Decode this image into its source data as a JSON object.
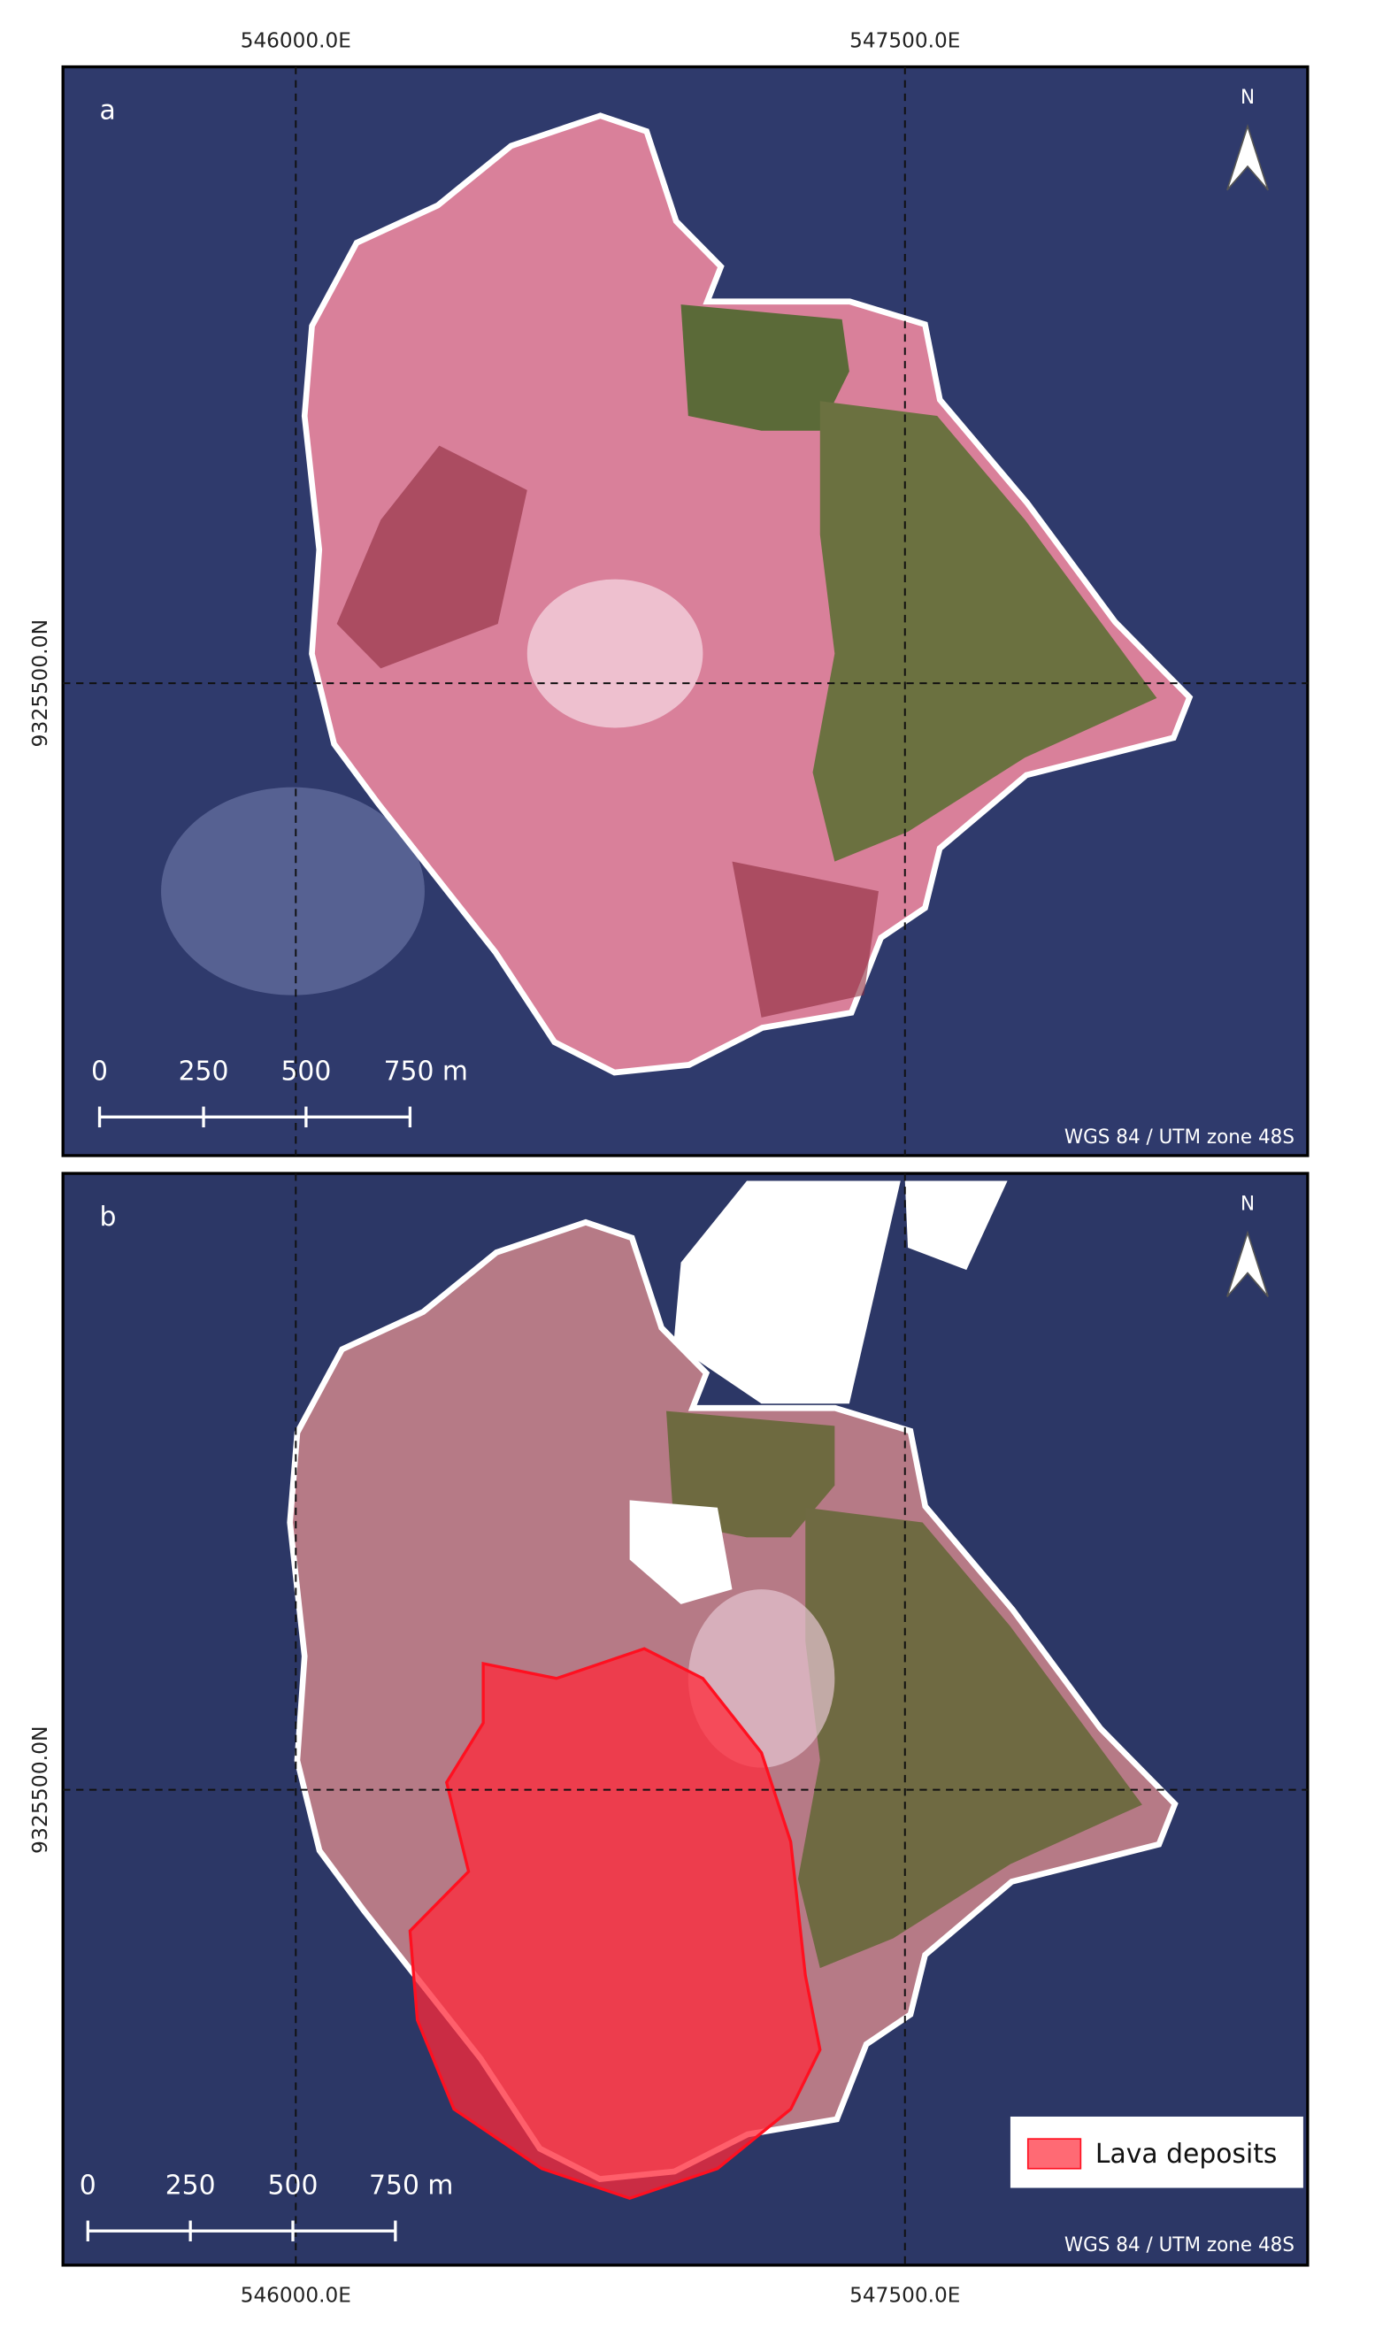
{
  "grid": {
    "x_labels": [
      "546000.0E",
      "547500.0E"
    ],
    "y_label": "9325500.0N"
  },
  "panels": [
    {
      "label": "a",
      "north": "N",
      "scale_labels": [
        "0",
        "250",
        "500",
        "750 m"
      ],
      "crs": "WGS 84 / UTM zone 48S"
    },
    {
      "label": "b",
      "north": "N",
      "scale_labels": [
        "0",
        "250",
        "500",
        "750 m"
      ],
      "crs": "WGS 84 / UTM zone 48S",
      "legend": "Lava deposits"
    }
  ]
}
